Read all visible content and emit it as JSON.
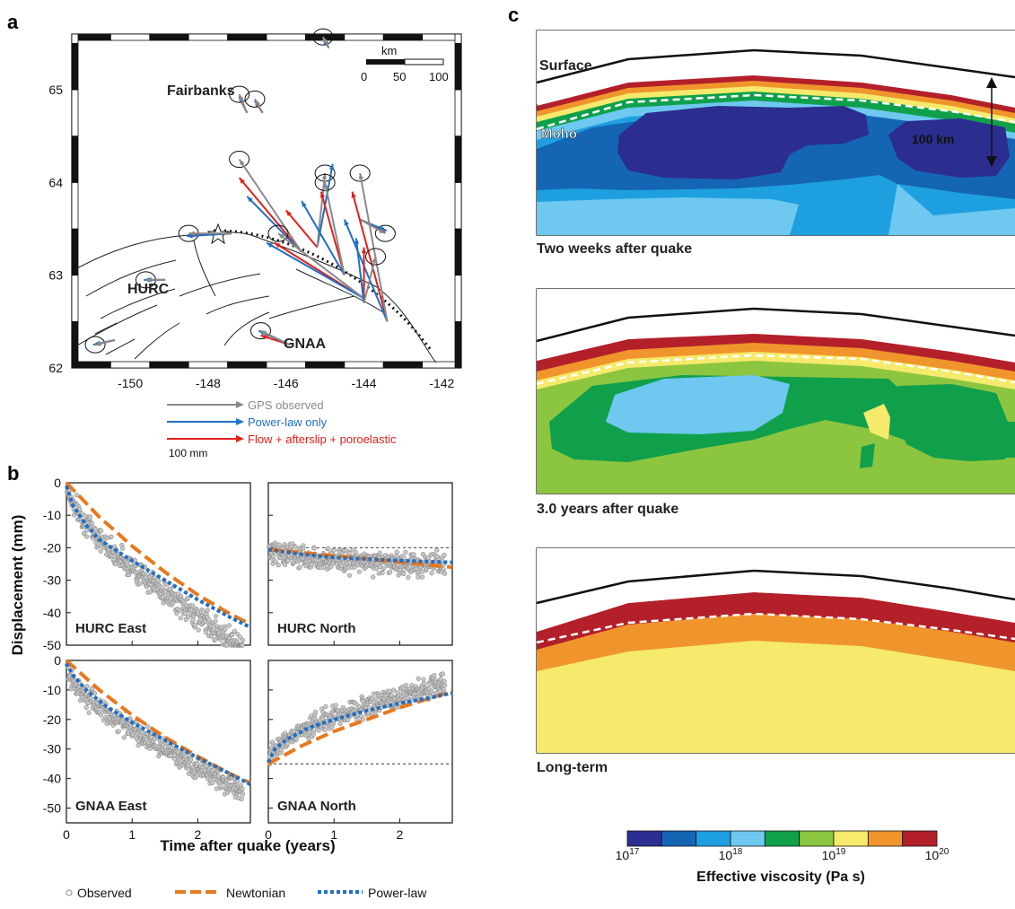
{
  "figure": {
    "panel_labels": [
      "a",
      "b",
      "c"
    ]
  },
  "colors": {
    "gps_observed": "#8a8a8a",
    "power_law": "#1f6fc4",
    "flow_afterslip_poroelastic": "#e0201b",
    "newtonian": "#e8781e",
    "observed_point": "#9a9a9a"
  },
  "panel_a": {
    "chart_data": {
      "type": "map",
      "xlim": [
        -151.5,
        -141.5
      ],
      "ylim": [
        62,
        65.6
      ],
      "xticks": [
        "-150",
        "-148",
        "-146",
        "-144",
        "-142"
      ],
      "yticks": [
        "62",
        "63",
        "64",
        "65"
      ],
      "places": [
        {
          "name": "Fairbanks",
          "lon": -147.4,
          "lat": 64.95
        },
        {
          "name": "HURC",
          "lon": -149.6,
          "lat": 62.9
        },
        {
          "name": "GNAA",
          "lon": -145.1,
          "lat": 62.2
        }
      ],
      "scale_bar": {
        "title": "km",
        "labels": [
          "0",
          "50",
          "100"
        ]
      },
      "legend": [
        {
          "label": "GPS observed",
          "color": "#8a8a8a"
        },
        {
          "label": "Power-law only",
          "color": "#1f6fc4"
        },
        {
          "label": "Flow + afterslip + poroelastic",
          "color": "#e0201b"
        }
      ],
      "arrow_scale_label": "100 mm",
      "stations": [
        {
          "lon": -144.9,
          "lat": 65.45,
          "obs": [
            -0.15,
            0.12
          ],
          "pl": [
            -0.15,
            0.1
          ],
          "fap": [
            -0.14,
            0.1
          ]
        },
        {
          "lon": -147.0,
          "lat": 64.75,
          "obs": [
            -0.2,
            0.2
          ],
          "pl": [
            -0.2,
            0.18
          ],
          "fap": [
            -0.2,
            0.17
          ]
        },
        {
          "lon": -146.6,
          "lat": 64.75,
          "obs": [
            -0.2,
            0.15
          ],
          "pl": [
            -0.2,
            0.14
          ],
          "fap": [
            -0.2,
            0.13
          ]
        },
        {
          "lon": -144.1,
          "lat": 63.6,
          "obs": [
            0.65,
            -0.15
          ],
          "pl": [
            0.68,
            -0.12
          ],
          "fap": [
            0.65,
            -0.14
          ]
        },
        {
          "lon": -147.4,
          "lat": 63.45,
          "obs": [
            -1.1,
            0.0
          ],
          "pl": [
            -1.15,
            -0.03
          ],
          "fap": [
            -1.1,
            -0.02
          ]
        },
        {
          "lon": -149.1,
          "lat": 62.95,
          "obs": [
            -0.5,
            0.0
          ],
          "pl": [
            -0.55,
            0.0
          ],
          "fap": [
            -0.5,
            0.0
          ]
        },
        {
          "lon": -150.4,
          "lat": 62.3,
          "obs": [
            -0.5,
            -0.05
          ],
          "pl": [
            -0.55,
            -0.05
          ],
          "fap": [
            -0.5,
            -0.05
          ]
        },
        {
          "lon": -145.9,
          "lat": 62.25,
          "obs": [
            -0.75,
            0.15
          ],
          "pl": [
            -0.8,
            0.15
          ],
          "fap": [
            -0.75,
            0.1
          ]
        },
        {
          "lon": -145.6,
          "lat": 63.25,
          "obs": [
            -1.6,
            1.0
          ],
          "pl": [
            -1.4,
            0.6
          ],
          "fap": [
            -1.6,
            0.8
          ]
        },
        {
          "lon": -145.2,
          "lat": 63.3,
          "obs": [
            0.2,
            0.8
          ],
          "pl": [
            0.4,
            0.9
          ],
          "fap": [
            -0.8,
            0.4
          ]
        },
        {
          "lon": -144.5,
          "lat": 63.0,
          "obs": [
            -0.5,
            1.0
          ],
          "pl": [
            -1.1,
            0.8
          ],
          "fap": [
            -0.6,
            0.9
          ]
        },
        {
          "lon": -144.0,
          "lat": 62.75,
          "obs": [
            -2.2,
            0.7
          ],
          "pl": [
            -2.5,
            0.6
          ],
          "fap": [
            -2.3,
            0.6
          ]
        },
        {
          "lon": -143.4,
          "lat": 62.5,
          "obs": [
            -0.7,
            1.6
          ],
          "pl": [
            -1.1,
            1.1
          ],
          "fap": [
            -0.9,
            1.4
          ]
        },
        {
          "lon": -144.0,
          "lat": 62.7,
          "obs": [
            0.3,
            0.5
          ],
          "pl": [
            -0.2,
            0.7
          ],
          "fap": [
            0.0,
            0.6
          ]
        }
      ]
    }
  },
  "panel_b": {
    "ylabel": "Displacement (mm)",
    "xlabel": "Time after quake (years)",
    "legend": [
      {
        "label": "Observed",
        "color": "#9a9a9a"
      },
      {
        "label": "Newtonian",
        "color": "#e8781e"
      },
      {
        "label": "Power-law",
        "color": "#1f6fc4"
      }
    ],
    "chart_data": [
      {
        "type": "scatter",
        "title": "HURC East",
        "xlim": [
          0,
          2.8
        ],
        "ylim": [
          -50,
          0
        ],
        "xticks": [],
        "yticks": [
          "0",
          "-10",
          "-20",
          "-30",
          "-40",
          "-50"
        ],
        "newtonian": {
          "x": [
            0,
            0.5,
            1,
            1.5,
            2,
            2.5,
            2.8
          ],
          "y": [
            0,
            -10.5,
            -19.5,
            -27.5,
            -34.5,
            -40.5,
            -43.5
          ]
        },
        "power_law": {
          "x": [
            0,
            0.1,
            0.3,
            0.5,
            1,
            1.5,
            2,
            2.5,
            2.8
          ],
          "y": [
            -1,
            -7,
            -13,
            -17.5,
            -24,
            -30,
            -36,
            -41.5,
            -44.5
          ]
        },
        "observed": {
          "f": "curve",
          "a": -1,
          "b": -13,
          "c": -11.5,
          "noise": 2.5,
          "n": 450
        }
      },
      {
        "type": "scatter",
        "title": "HURC North",
        "xlim": [
          0,
          2.8
        ],
        "ylim": [
          -50,
          0
        ],
        "xticks": [],
        "yticks": [],
        "reference_line_y": -20,
        "newtonian": {
          "x": [
            0,
            2.8
          ],
          "y": [
            -20.5,
            -26
          ]
        },
        "power_law": {
          "x": [
            0,
            0.5,
            1,
            2,
            2.8
          ],
          "y": [
            -20.5,
            -22,
            -23,
            -24,
            -24.5
          ]
        },
        "observed": {
          "f": "curve",
          "a": -20.5,
          "b": -2.5,
          "c": -0.5,
          "noise": 2.5,
          "n": 450
        }
      },
      {
        "type": "scatter",
        "title": "GNAA East",
        "xlim": [
          0,
          2.8
        ],
        "ylim": [
          -55,
          0
        ],
        "xticks": [
          "0",
          "1",
          "2"
        ],
        "yticks": [
          "0",
          "-10",
          "-20",
          "-30",
          "-40",
          "-50"
        ],
        "reference_line_y": 0,
        "newtonian": {
          "x": [
            0,
            0.5,
            1,
            1.5,
            2,
            2.5,
            2.8
          ],
          "y": [
            0,
            -10,
            -18.5,
            -26,
            -32.5,
            -38.5,
            -41.5
          ]
        },
        "power_law": {
          "x": [
            0,
            0.1,
            0.3,
            0.6,
            1,
            1.5,
            2,
            2.5,
            2.8
          ],
          "y": [
            -1,
            -5,
            -10,
            -15.5,
            -21,
            -27,
            -33,
            -38.5,
            -42
          ]
        },
        "observed": {
          "f": "curve",
          "a": -3,
          "b": -10,
          "c": -10,
          "noise": 2.5,
          "n": 450
        }
      },
      {
        "type": "scatter",
        "title": "GNAA North",
        "xlim": [
          0,
          2.8
        ],
        "ylim": [
          -55,
          0
        ],
        "xticks": [
          "0",
          "1",
          "2"
        ],
        "yticks": [],
        "reference_line_y": -35,
        "newtonian": {
          "x": [
            0,
            0.5,
            1,
            1.5,
            2,
            2.5,
            2.8
          ],
          "y": [
            -35,
            -29,
            -24,
            -20,
            -16,
            -12.5,
            -10.5
          ]
        },
        "power_law": {
          "x": [
            0,
            0.1,
            0.3,
            0.6,
            1,
            1.5,
            2,
            2.5,
            2.8
          ],
          "y": [
            -34.5,
            -30,
            -26.5,
            -23,
            -20,
            -17,
            -14.5,
            -12.5,
            -11
          ]
        },
        "observed": {
          "f": "curve",
          "a": -33,
          "b": 9,
          "c": 4.5,
          "noise": 2.5,
          "n": 450
        }
      }
    ]
  },
  "panel_c": {
    "labels": {
      "surface": "Surface",
      "moho": "Moho",
      "depth": "100 km"
    },
    "snapshots": [
      {
        "caption": "Two weeks after quake"
      },
      {
        "caption": "3.0 years after quake"
      },
      {
        "caption": "Long-term"
      }
    ],
    "colorbar": {
      "title": "Effective viscosity (Pa s)",
      "tick_labels": [
        {
          "base": "10",
          "exp": "17"
        },
        {
          "base": "10",
          "exp": "18"
        },
        {
          "base": "10",
          "exp": "19"
        },
        {
          "base": "10",
          "exp": "20"
        }
      ],
      "colors": [
        "#2b2d8f",
        "#1565b5",
        "#1ea0e0",
        "#6ec8ef",
        "#10a04b",
        "#8cc540",
        "#f5ea6b",
        "#f0952c",
        "#b3202a"
      ]
    }
  }
}
